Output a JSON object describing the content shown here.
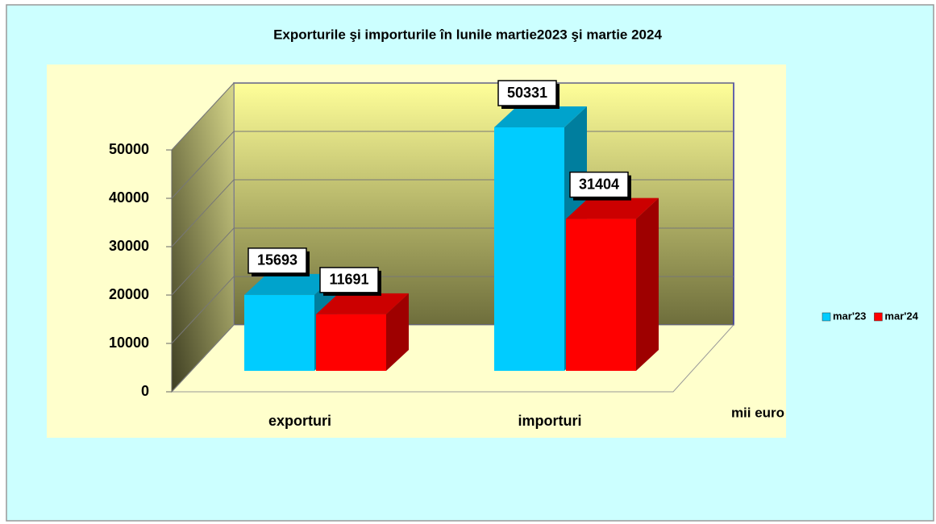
{
  "chart_data": {
    "type": "bar3d",
    "title": "Exporturile şi importurile în lunile martie2023 şi martie 2024",
    "categories": [
      "exporturi",
      "importuri"
    ],
    "series": [
      {
        "name": "mar'23",
        "color": "#00ccff",
        "values": [
          15693,
          50331
        ]
      },
      {
        "name": "mar'24",
        "color": "#ff0000",
        "values": [
          11691,
          31404
        ]
      }
    ],
    "ylim": [
      0,
      50000
    ],
    "yticks": [
      0,
      10000,
      20000,
      30000,
      40000,
      50000
    ],
    "grid": true,
    "legend": "right",
    "annotation": "mii euro"
  }
}
